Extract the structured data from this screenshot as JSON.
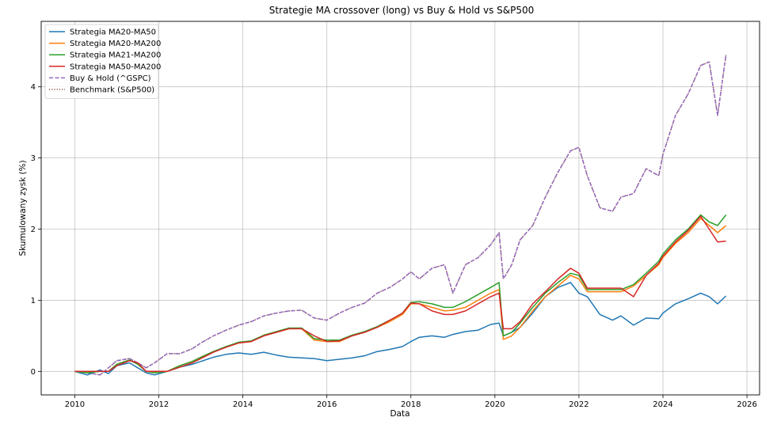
{
  "chart_data": {
    "type": "line",
    "title": "Strategie MA crossover (long) vs Buy & Hold vs S&P500",
    "xlabel": "Data",
    "ylabel": "Skumulowany zysk (%)",
    "xlim": [
      2009.2,
      2026.3
    ],
    "ylim": [
      -0.33,
      4.92
    ],
    "xticks": [
      2010,
      2012,
      2014,
      2016,
      2018,
      2020,
      2022,
      2024,
      2026
    ],
    "xtick_labels": [
      "2010",
      "2012",
      "2014",
      "2016",
      "2018",
      "2020",
      "2022",
      "2024",
      "2026"
    ],
    "yticks": [
      0,
      1,
      2,
      3,
      4
    ],
    "ytick_labels": [
      "0",
      "1",
      "2",
      "3",
      "4"
    ],
    "grid": true,
    "legend_position": "top-left",
    "series": [
      {
        "name": "Strategia MA20-MA50",
        "color": "#1f77b4",
        "style": "solid",
        "x": [
          2010.0,
          2010.3,
          2010.6,
          2010.8,
          2011.0,
          2011.3,
          2011.5,
          2011.7,
          2011.9,
          2012.2,
          2012.5,
          2012.8,
          2013.0,
          2013.3,
          2013.6,
          2013.9,
          2014.2,
          2014.5,
          2014.8,
          2015.1,
          2015.4,
          2015.7,
          2016.0,
          2016.3,
          2016.6,
          2016.9,
          2017.2,
          2017.5,
          2017.8,
          2018.0,
          2018.2,
          2018.5,
          2018.8,
          2019.0,
          2019.3,
          2019.6,
          2019.9,
          2020.1,
          2020.2,
          2020.4,
          2020.6,
          2020.9,
          2021.2,
          2021.5,
          2021.8,
          2022.0,
          2022.2,
          2022.5,
          2022.8,
          2023.0,
          2023.3,
          2023.6,
          2023.9,
          2024.0,
          2024.3,
          2024.6,
          2024.9,
          2025.1,
          2025.3,
          2025.5
        ],
        "y": [
          0.0,
          -0.05,
          0.02,
          -0.03,
          0.08,
          0.12,
          0.05,
          -0.02,
          -0.05,
          0.0,
          0.06,
          0.1,
          0.14,
          0.2,
          0.24,
          0.26,
          0.24,
          0.27,
          0.23,
          0.2,
          0.19,
          0.18,
          0.15,
          0.17,
          0.19,
          0.22,
          0.28,
          0.31,
          0.35,
          0.42,
          0.48,
          0.5,
          0.48,
          0.52,
          0.56,
          0.58,
          0.66,
          0.68,
          0.5,
          0.55,
          0.62,
          0.82,
          1.05,
          1.18,
          1.25,
          1.1,
          1.05,
          0.8,
          0.72,
          0.78,
          0.65,
          0.75,
          0.74,
          0.82,
          0.95,
          1.02,
          1.1,
          1.05,
          0.95,
          1.06
        ]
      },
      {
        "name": "Strategia MA20-MA200",
        "color": "#ff7f0e",
        "style": "solid",
        "x": [
          2010.0,
          2010.3,
          2010.6,
          2010.8,
          2011.0,
          2011.3,
          2011.5,
          2011.7,
          2011.9,
          2012.2,
          2012.5,
          2012.8,
          2013.0,
          2013.3,
          2013.6,
          2013.9,
          2014.2,
          2014.5,
          2014.8,
          2015.1,
          2015.4,
          2015.7,
          2016.0,
          2016.3,
          2016.6,
          2016.9,
          2017.2,
          2017.5,
          2017.8,
          2018.0,
          2018.2,
          2018.5,
          2018.8,
          2019.0,
          2019.3,
          2019.6,
          2019.9,
          2020.1,
          2020.2,
          2020.4,
          2020.6,
          2020.9,
          2021.2,
          2021.5,
          2021.8,
          2022.0,
          2022.2,
          2022.5,
          2022.8,
          2023.0,
          2023.3,
          2023.6,
          2023.9,
          2024.0,
          2024.3,
          2024.6,
          2024.9,
          2025.1,
          2025.3,
          2025.5
        ],
        "y": [
          0.0,
          -0.02,
          0.0,
          0.0,
          0.1,
          0.16,
          0.1,
          0.0,
          -0.02,
          0.0,
          0.08,
          0.14,
          0.2,
          0.28,
          0.34,
          0.4,
          0.42,
          0.5,
          0.55,
          0.6,
          0.6,
          0.44,
          0.42,
          0.42,
          0.5,
          0.55,
          0.62,
          0.7,
          0.8,
          0.95,
          0.95,
          0.9,
          0.85,
          0.86,
          0.9,
          1.0,
          1.1,
          1.15,
          0.45,
          0.5,
          0.62,
          0.85,
          1.05,
          1.2,
          1.35,
          1.3,
          1.12,
          1.12,
          1.12,
          1.12,
          1.2,
          1.35,
          1.5,
          1.6,
          1.8,
          1.95,
          2.15,
          2.05,
          1.95,
          2.05
        ]
      },
      {
        "name": "Strategia MA21-MA200",
        "color": "#2ca02c",
        "style": "solid",
        "x": [
          2010.0,
          2010.3,
          2010.6,
          2010.8,
          2011.0,
          2011.3,
          2011.5,
          2011.7,
          2011.9,
          2012.2,
          2012.5,
          2012.8,
          2013.0,
          2013.3,
          2013.6,
          2013.9,
          2014.2,
          2014.5,
          2014.8,
          2015.1,
          2015.4,
          2015.7,
          2016.0,
          2016.3,
          2016.6,
          2016.9,
          2017.2,
          2017.5,
          2017.8,
          2018.0,
          2018.2,
          2018.5,
          2018.8,
          2019.0,
          2019.3,
          2019.6,
          2019.9,
          2020.1,
          2020.2,
          2020.4,
          2020.6,
          2020.9,
          2021.2,
          2021.5,
          2021.8,
          2022.0,
          2022.2,
          2022.5,
          2022.8,
          2023.0,
          2023.3,
          2023.6,
          2023.9,
          2024.0,
          2024.3,
          2024.6,
          2024.9,
          2025.1,
          2025.3,
          2025.5
        ],
        "y": [
          0.0,
          -0.02,
          0.0,
          0.0,
          0.1,
          0.16,
          0.1,
          0.0,
          -0.02,
          0.0,
          0.08,
          0.14,
          0.2,
          0.28,
          0.35,
          0.41,
          0.43,
          0.51,
          0.56,
          0.61,
          0.61,
          0.46,
          0.44,
          0.44,
          0.51,
          0.56,
          0.63,
          0.72,
          0.82,
          0.97,
          0.98,
          0.95,
          0.9,
          0.9,
          0.98,
          1.08,
          1.18,
          1.25,
          0.5,
          0.55,
          0.68,
          0.9,
          1.1,
          1.25,
          1.38,
          1.35,
          1.15,
          1.15,
          1.15,
          1.15,
          1.22,
          1.38,
          1.55,
          1.65,
          1.85,
          2.0,
          2.2,
          2.1,
          2.05,
          2.2
        ]
      },
      {
        "name": "Strategia MA50-MA200",
        "color": "#d62728",
        "style": "solid",
        "x": [
          2010.0,
          2010.3,
          2010.6,
          2010.8,
          2011.0,
          2011.3,
          2011.5,
          2011.7,
          2011.9,
          2012.2,
          2012.5,
          2012.8,
          2013.0,
          2013.3,
          2013.6,
          2013.9,
          2014.2,
          2014.5,
          2014.8,
          2015.1,
          2015.4,
          2015.7,
          2016.0,
          2016.3,
          2016.6,
          2016.9,
          2017.2,
          2017.5,
          2017.8,
          2018.0,
          2018.2,
          2018.5,
          2018.8,
          2019.0,
          2019.3,
          2019.6,
          2019.9,
          2020.1,
          2020.2,
          2020.4,
          2020.6,
          2020.9,
          2021.2,
          2021.5,
          2021.8,
          2022.0,
          2022.2,
          2022.5,
          2022.8,
          2023.0,
          2023.3,
          2023.6,
          2023.9,
          2024.0,
          2024.3,
          2024.6,
          2024.9,
          2025.1,
          2025.3,
          2025.5
        ],
        "y": [
          0.0,
          0.0,
          0.0,
          0.0,
          0.08,
          0.15,
          0.12,
          0.0,
          0.0,
          0.0,
          0.06,
          0.12,
          0.18,
          0.27,
          0.34,
          0.4,
          0.42,
          0.5,
          0.55,
          0.6,
          0.6,
          0.5,
          0.42,
          0.43,
          0.5,
          0.55,
          0.62,
          0.72,
          0.82,
          0.96,
          0.95,
          0.85,
          0.8,
          0.8,
          0.85,
          0.95,
          1.05,
          1.1,
          0.6,
          0.6,
          0.7,
          0.95,
          1.12,
          1.3,
          1.45,
          1.38,
          1.17,
          1.17,
          1.17,
          1.17,
          1.05,
          1.35,
          1.52,
          1.62,
          1.82,
          1.98,
          2.18,
          2.0,
          1.82,
          1.83
        ]
      },
      {
        "name": "Buy & Hold (^GSPC)",
        "color": "#9467bd",
        "style": "dashed",
        "x": [
          2010.0,
          2010.3,
          2010.6,
          2010.8,
          2011.0,
          2011.3,
          2011.5,
          2011.7,
          2011.9,
          2012.2,
          2012.5,
          2012.8,
          2013.0,
          2013.3,
          2013.6,
          2013.9,
          2014.2,
          2014.5,
          2014.8,
          2015.1,
          2015.4,
          2015.7,
          2016.0,
          2016.3,
          2016.6,
          2016.9,
          2017.2,
          2017.5,
          2017.8,
          2018.0,
          2018.2,
          2018.5,
          2018.8,
          2019.0,
          2019.3,
          2019.6,
          2019.9,
          2020.1,
          2020.2,
          2020.4,
          2020.6,
          2020.9,
          2021.2,
          2021.5,
          2021.8,
          2022.0,
          2022.2,
          2022.5,
          2022.8,
          2023.0,
          2023.3,
          2023.6,
          2023.9,
          2024.0,
          2024.3,
          2024.6,
          2024.9,
          2025.1,
          2025.3,
          2025.5
        ],
        "y": [
          0.0,
          -0.02,
          -0.05,
          0.05,
          0.15,
          0.18,
          0.12,
          0.05,
          0.12,
          0.25,
          0.25,
          0.32,
          0.4,
          0.5,
          0.58,
          0.65,
          0.7,
          0.78,
          0.82,
          0.85,
          0.86,
          0.75,
          0.72,
          0.82,
          0.9,
          0.96,
          1.1,
          1.18,
          1.3,
          1.4,
          1.3,
          1.45,
          1.5,
          1.1,
          1.5,
          1.6,
          1.78,
          1.95,
          1.3,
          1.5,
          1.85,
          2.05,
          2.45,
          2.8,
          3.1,
          3.15,
          2.75,
          2.3,
          2.25,
          2.45,
          2.5,
          2.85,
          2.75,
          3.05,
          3.6,
          3.9,
          4.3,
          4.35,
          3.6,
          4.45
        ]
      },
      {
        "name": "Benchmark (S&P500)",
        "color": "#8c564b",
        "style": "dotted",
        "x": [
          2010.0,
          2010.3,
          2010.6,
          2010.8,
          2011.0,
          2011.3,
          2011.5,
          2011.7,
          2011.9,
          2012.2,
          2012.5,
          2012.8,
          2013.0,
          2013.3,
          2013.6,
          2013.9,
          2014.2,
          2014.5,
          2014.8,
          2015.1,
          2015.4,
          2015.7,
          2016.0,
          2016.3,
          2016.6,
          2016.9,
          2017.2,
          2017.5,
          2017.8,
          2018.0,
          2018.2,
          2018.5,
          2018.8,
          2019.0,
          2019.3,
          2019.6,
          2019.9,
          2020.1,
          2020.2,
          2020.4,
          2020.6,
          2020.9,
          2021.2,
          2021.5,
          2021.8,
          2022.0,
          2022.2,
          2022.5,
          2022.8,
          2023.0,
          2023.3,
          2023.6,
          2023.9,
          2024.0,
          2024.3,
          2024.6,
          2024.9,
          2025.1,
          2025.3,
          2025.5
        ],
        "y": [
          0.0,
          -0.02,
          -0.05,
          0.05,
          0.15,
          0.18,
          0.12,
          0.05,
          0.12,
          0.25,
          0.25,
          0.32,
          0.4,
          0.5,
          0.58,
          0.65,
          0.7,
          0.78,
          0.82,
          0.85,
          0.86,
          0.75,
          0.72,
          0.82,
          0.9,
          0.96,
          1.1,
          1.18,
          1.3,
          1.4,
          1.3,
          1.45,
          1.5,
          1.1,
          1.5,
          1.6,
          1.78,
          1.95,
          1.3,
          1.5,
          1.85,
          2.05,
          2.45,
          2.8,
          3.1,
          3.15,
          2.75,
          2.3,
          2.25,
          2.45,
          2.5,
          2.85,
          2.75,
          3.05,
          3.6,
          3.9,
          4.3,
          4.35,
          3.6,
          4.45
        ]
      }
    ]
  }
}
